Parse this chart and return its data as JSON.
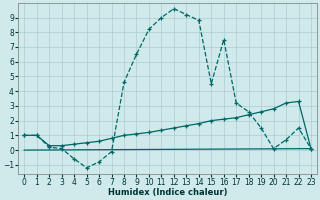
{
  "background_color": "#d0eaec",
  "grid_color": "#aacdd2",
  "line_color": "#006666",
  "xlabel": "Humidex (Indice chaleur)",
  "xlim": [
    -0.5,
    23.5
  ],
  "ylim": [
    -1.6,
    10.0
  ],
  "xticks": [
    0,
    1,
    2,
    3,
    4,
    5,
    6,
    7,
    8,
    9,
    10,
    11,
    12,
    13,
    14,
    15,
    16,
    17,
    18,
    19,
    20,
    21,
    22,
    23
  ],
  "yticks": [
    -1,
    0,
    1,
    2,
    3,
    4,
    5,
    6,
    7,
    8,
    9
  ],
  "curve1_x": [
    0,
    1,
    2,
    3,
    4,
    5,
    6,
    7,
    8,
    9,
    10,
    11,
    12,
    13,
    14,
    15,
    16,
    17,
    18,
    19,
    20,
    21,
    22,
    23
  ],
  "curve1_y": [
    1.0,
    1.0,
    0.2,
    0.1,
    -0.6,
    -1.2,
    -0.8,
    -0.1,
    4.6,
    6.5,
    8.2,
    9.0,
    9.6,
    9.2,
    8.8,
    4.5,
    7.5,
    3.2,
    2.6,
    1.5,
    0.1,
    0.7,
    1.5,
    0.1
  ],
  "curve2_x": [
    0,
    1,
    2,
    3,
    4,
    5,
    6,
    7,
    8,
    9,
    10,
    11,
    12,
    13,
    14,
    15,
    16,
    17,
    18,
    19,
    20,
    21,
    22,
    23
  ],
  "curve2_y": [
    1.0,
    1.0,
    0.3,
    0.3,
    0.4,
    0.5,
    0.6,
    0.8,
    1.0,
    1.1,
    1.2,
    1.35,
    1.5,
    1.65,
    1.8,
    2.0,
    2.1,
    2.2,
    2.4,
    2.6,
    2.8,
    3.2,
    3.3,
    0.1
  ],
  "curve3_x": [
    0,
    23
  ],
  "curve3_y": [
    0.0,
    0.1
  ]
}
